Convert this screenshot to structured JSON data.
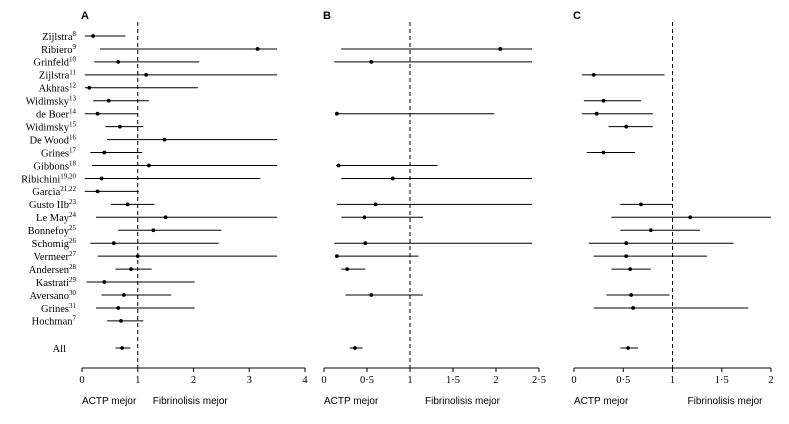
{
  "chart_data": {
    "type": "forest",
    "studies": [
      {
        "name": "Zijlstra",
        "ref": "8"
      },
      {
        "name": "Ribiero",
        "ref": "9"
      },
      {
        "name": "Grinfeld",
        "ref": "10"
      },
      {
        "name": "Zijlstra",
        "ref": "11"
      },
      {
        "name": "Akhras",
        "ref": "12"
      },
      {
        "name": "Widimsky",
        "ref": "13"
      },
      {
        "name": "de Boer",
        "ref": "14"
      },
      {
        "name": "Widimsky",
        "ref": "15"
      },
      {
        "name": "De Wood",
        "ref": "16"
      },
      {
        "name": "Grines",
        "ref": "17"
      },
      {
        "name": "Gibbons",
        "ref": "18"
      },
      {
        "name": "Ribichini",
        "ref": "19,20"
      },
      {
        "name": "Garcia",
        "ref": "21,22"
      },
      {
        "name": "Gusto IIb",
        "ref": "23"
      },
      {
        "name": "Le May",
        "ref": "24"
      },
      {
        "name": "Bonnefoy",
        "ref": "25"
      },
      {
        "name": "Schomig",
        "ref": "26"
      },
      {
        "name": "Vermeer",
        "ref": "27"
      },
      {
        "name": "Andersen",
        "ref": "28"
      },
      {
        "name": "Kastrati",
        "ref": "29"
      },
      {
        "name": "Aversano",
        "ref": "30"
      },
      {
        "name": "Grines",
        "ref": "31"
      },
      {
        "name": "Hochman",
        "ref": "7"
      }
    ],
    "overall_label": "All",
    "panels": [
      {
        "letter": "A",
        "xlim": [
          0,
          4
        ],
        "ticks": [
          {
            "v": 0,
            "t": "0"
          },
          {
            "v": 1,
            "t": "1"
          },
          {
            "v": 2,
            "t": "2"
          },
          {
            "v": 3,
            "t": "3"
          },
          {
            "v": 4,
            "t": "4"
          }
        ],
        "reference": 1,
        "left_caption": "ACTP mejor",
        "right_caption": "Fibrinolisis mejor",
        "rows": [
          {
            "point": 0.2,
            "lo": 0.05,
            "hi": 0.78
          },
          {
            "point": 3.15,
            "lo": 0.32,
            "hi": 3.5
          },
          {
            "point": 0.65,
            "lo": 0.22,
            "hi": 2.1
          },
          {
            "point": 1.15,
            "lo": 0.05,
            "hi": 3.5
          },
          {
            "point": 0.13,
            "lo": 0.05,
            "hi": 2.08
          },
          {
            "point": 0.48,
            "lo": 0.2,
            "hi": 1.2
          },
          {
            "point": 0.28,
            "lo": 0.05,
            "hi": 1.0
          },
          {
            "point": 0.68,
            "lo": 0.42,
            "hi": 1.1
          },
          {
            "point": 1.48,
            "lo": 0.45,
            "hi": 3.5
          },
          {
            "point": 0.4,
            "lo": 0.15,
            "hi": 1.08
          },
          {
            "point": 1.2,
            "lo": 0.18,
            "hi": 3.5
          },
          {
            "point": 0.35,
            "lo": 0.05,
            "hi": 3.2
          },
          {
            "point": 0.28,
            "lo": 0.05,
            "hi": 1.02
          },
          {
            "point": 0.82,
            "lo": 0.52,
            "hi": 1.3
          },
          {
            "point": 1.5,
            "lo": 0.25,
            "hi": 3.5
          },
          {
            "point": 1.28,
            "lo": 0.65,
            "hi": 2.5
          },
          {
            "point": 0.57,
            "lo": 0.15,
            "hi": 2.45
          },
          {
            "point": 1.0,
            "lo": 0.28,
            "hi": 3.5
          },
          {
            "point": 0.88,
            "lo": 0.6,
            "hi": 1.25
          },
          {
            "point": 0.4,
            "lo": 0.08,
            "hi": 2.02
          },
          {
            "point": 0.75,
            "lo": 0.35,
            "hi": 1.6
          },
          {
            "point": 0.65,
            "lo": 0.25,
            "hi": 2.02
          },
          {
            "point": 0.7,
            "lo": 0.45,
            "hi": 1.1
          }
        ],
        "overall": {
          "point": 0.72,
          "lo": 0.6,
          "hi": 0.87
        }
      },
      {
        "letter": "B",
        "xlim": [
          0,
          2.5
        ],
        "ticks": [
          {
            "v": 0,
            "t": "0"
          },
          {
            "v": 0.5,
            "t": "0·5"
          },
          {
            "v": 1,
            "t": "1"
          },
          {
            "v": 1.5,
            "t": "1·5"
          },
          {
            "v": 2,
            "t": "2"
          },
          {
            "v": 2.5,
            "t": "2·5"
          }
        ],
        "reference": 1,
        "left_caption": "ACTP mejor",
        "right_caption": "Fibrinolisis mejor",
        "rows": [
          null,
          {
            "point": 2.05,
            "lo": 0.2,
            "hi": 2.42
          },
          {
            "point": 0.55,
            "lo": 0.12,
            "hi": 2.42
          },
          null,
          null,
          null,
          {
            "point": 0.15,
            "lo": 0.15,
            "hi": 1.98
          },
          null,
          null,
          null,
          {
            "point": 0.17,
            "lo": 0.14,
            "hi": 1.32
          },
          {
            "point": 0.8,
            "lo": 0.2,
            "hi": 2.42
          },
          null,
          {
            "point": 0.6,
            "lo": 0.15,
            "hi": 2.42
          },
          {
            "point": 0.47,
            "lo": 0.2,
            "hi": 1.15
          },
          null,
          {
            "point": 0.48,
            "lo": 0.12,
            "hi": 2.42
          },
          {
            "point": 0.15,
            "lo": 0.14,
            "hi": 1.1
          },
          {
            "point": 0.27,
            "lo": 0.2,
            "hi": 0.48
          },
          null,
          {
            "point": 0.55,
            "lo": 0.25,
            "hi": 1.15
          },
          null,
          null
        ],
        "overall": {
          "point": 0.36,
          "lo": 0.3,
          "hi": 0.45
        }
      },
      {
        "letter": "C",
        "xlim": [
          0,
          2
        ],
        "ticks": [
          {
            "v": 0,
            "t": "0"
          },
          {
            "v": 0.5,
            "t": "0·5"
          },
          {
            "v": 1,
            "t": "1"
          },
          {
            "v": 1.5,
            "t": "1·5"
          },
          {
            "v": 2,
            "t": "2"
          }
        ],
        "reference": 1,
        "left_caption": "ACTP mejor",
        "right_caption": "Fibrinolisis mejor",
        "rows": [
          null,
          null,
          null,
          {
            "point": 0.2,
            "lo": 0.08,
            "hi": 0.92
          },
          null,
          {
            "point": 0.3,
            "lo": 0.1,
            "hi": 0.68
          },
          {
            "point": 0.23,
            "lo": 0.08,
            "hi": 0.8
          },
          {
            "point": 0.53,
            "lo": 0.35,
            "hi": 0.8
          },
          null,
          {
            "point": 0.3,
            "lo": 0.13,
            "hi": 0.62
          },
          null,
          null,
          null,
          {
            "point": 0.68,
            "lo": 0.47,
            "hi": 1.0
          },
          {
            "point": 1.18,
            "lo": 0.38,
            "hi": 2.02
          },
          {
            "point": 0.78,
            "lo": 0.47,
            "hi": 1.28
          },
          {
            "point": 0.53,
            "lo": 0.15,
            "hi": 1.62
          },
          {
            "point": 0.53,
            "lo": 0.2,
            "hi": 1.35
          },
          {
            "point": 0.57,
            "lo": 0.38,
            "hi": 0.78
          },
          null,
          {
            "point": 0.58,
            "lo": 0.33,
            "hi": 0.97
          },
          {
            "point": 0.6,
            "lo": 0.2,
            "hi": 1.77
          },
          null
        ],
        "overall": {
          "point": 0.55,
          "lo": 0.47,
          "hi": 0.65
        }
      }
    ]
  }
}
